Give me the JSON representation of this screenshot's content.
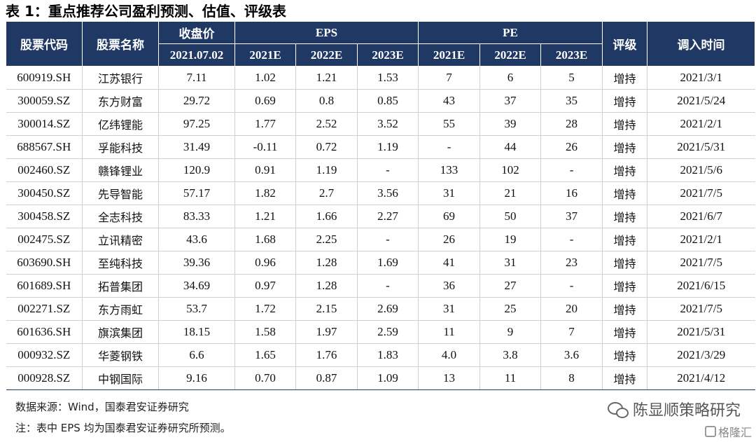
{
  "title": "表 1：重点推荐公司盈利预测、估值、评级表",
  "headers": {
    "code": "股票代码",
    "name": "股票名称",
    "close_label": "收盘价",
    "close_date": "2021.07.02",
    "eps": "EPS",
    "pe": "PE",
    "years": [
      "2021E",
      "2022E",
      "2023E"
    ],
    "rating": "评级",
    "date": "调入时间"
  },
  "rows": [
    {
      "code": "600919.SH",
      "name": "江苏银行",
      "close": "7.11",
      "eps": [
        "1.02",
        "1.21",
        "1.53"
      ],
      "pe": [
        "7",
        "6",
        "5"
      ],
      "rating": "增持",
      "date": "2021/3/1"
    },
    {
      "code": "300059.SZ",
      "name": "东方财富",
      "close": "29.72",
      "eps": [
        "0.69",
        "0.8",
        "0.85"
      ],
      "pe": [
        "43",
        "37",
        "35"
      ],
      "rating": "增持",
      "date": "2021/5/24"
    },
    {
      "code": "300014.SZ",
      "name": "亿纬锂能",
      "close": "97.25",
      "eps": [
        "1.77",
        "2.52",
        "3.52"
      ],
      "pe": [
        "55",
        "39",
        "28"
      ],
      "rating": "增持",
      "date": "2021/2/1"
    },
    {
      "code": "688567.SH",
      "name": "孚能科技",
      "close": "31.49",
      "eps": [
        "-0.11",
        "0.72",
        "1.19"
      ],
      "pe": [
        "-",
        "44",
        "26"
      ],
      "rating": "增持",
      "date": "2021/5/31"
    },
    {
      "code": "002460.SZ",
      "name": "赣锋锂业",
      "close": "120.9",
      "eps": [
        "0.91",
        "1.19",
        "-"
      ],
      "pe": [
        "133",
        "102",
        "-"
      ],
      "rating": "增持",
      "date": "2021/5/6"
    },
    {
      "code": "300450.SZ",
      "name": "先导智能",
      "close": "57.17",
      "eps": [
        "1.82",
        "2.7",
        "3.56"
      ],
      "pe": [
        "31",
        "21",
        "16"
      ],
      "rating": "增持",
      "date": "2021/7/5"
    },
    {
      "code": "300458.SZ",
      "name": "全志科技",
      "close": "83.33",
      "eps": [
        "1.21",
        "1.66",
        "2.27"
      ],
      "pe": [
        "69",
        "50",
        "37"
      ],
      "rating": "增持",
      "date": "2021/6/7"
    },
    {
      "code": "002475.SZ",
      "name": "立讯精密",
      "close": "43.6",
      "eps": [
        "1.68",
        "2.25",
        "-"
      ],
      "pe": [
        "26",
        "19",
        "-"
      ],
      "rating": "增持",
      "date": "2021/2/1"
    },
    {
      "code": "603690.SH",
      "name": "至纯科技",
      "close": "39.36",
      "eps": [
        "0.96",
        "1.28",
        "1.69"
      ],
      "pe": [
        "41",
        "31",
        "23"
      ],
      "rating": "增持",
      "date": "2021/7/5"
    },
    {
      "code": "601689.SH",
      "name": "拓普集团",
      "close": "34.69",
      "eps": [
        "0.97",
        "1.28",
        "-"
      ],
      "pe": [
        "36",
        "27",
        "-"
      ],
      "rating": "增持",
      "date": "2021/6/15"
    },
    {
      "code": "002271.SZ",
      "name": "东方雨虹",
      "close": "53.7",
      "eps": [
        "1.72",
        "2.15",
        "2.69"
      ],
      "pe": [
        "31",
        "25",
        "20"
      ],
      "rating": "增持",
      "date": "2021/7/5"
    },
    {
      "code": "601636.SH",
      "name": "旗滨集团",
      "close": "18.15",
      "eps": [
        "1.58",
        "1.97",
        "2.59"
      ],
      "pe": [
        "11",
        "9",
        "7"
      ],
      "rating": "增持",
      "date": "2021/5/31"
    },
    {
      "code": "000932.SZ",
      "name": "华菱钢铁",
      "close": "6.6",
      "eps": [
        "1.65",
        "1.76",
        "1.83"
      ],
      "pe": [
        "4.0",
        "3.8",
        "3.6"
      ],
      "rating": "增持",
      "date": "2021/3/29"
    },
    {
      "code": "000928.SZ",
      "name": "中钢国际",
      "close": "9.16",
      "eps": [
        "0.70",
        "0.87",
        "1.09"
      ],
      "pe": [
        "13",
        "11",
        "8"
      ],
      "rating": "增持",
      "date": "2021/4/12"
    }
  ],
  "notes": {
    "source": "数据来源：Wind，国泰君安证券研究",
    "note": "注：表中 EPS 均为国泰君安证券研究所预测。"
  },
  "watermark": "陈显顺策略研究",
  "logo_text": "格隆汇",
  "colors": {
    "header_bg": "#1f3864",
    "header_text": "#ffffff"
  }
}
